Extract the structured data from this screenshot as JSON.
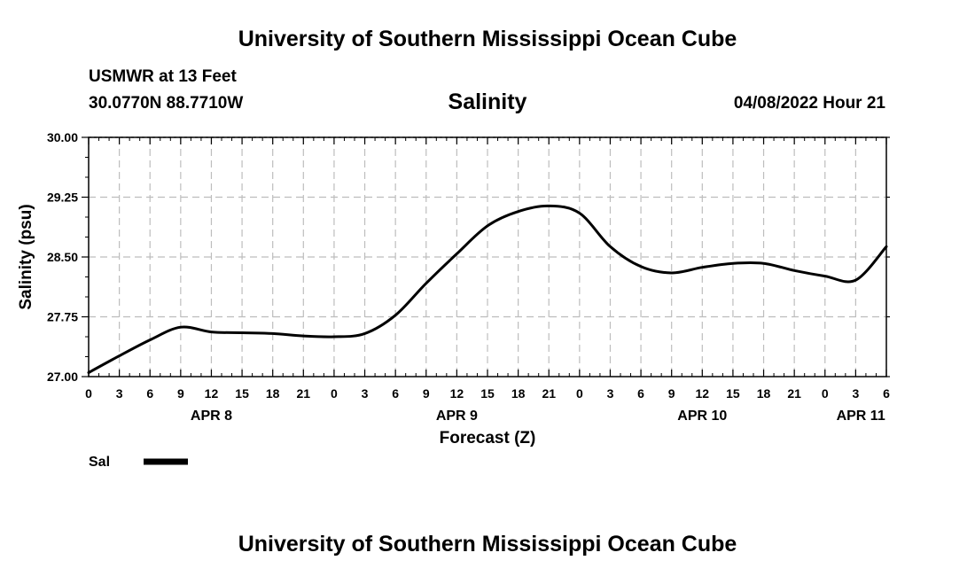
{
  "header": {
    "title": "University of Southern Mississippi Ocean Cube",
    "station": "USMWR at 13 Feet",
    "coords": "30.0770N  88.7710W",
    "datetime": "04/08/2022 Hour 21"
  },
  "footer": {
    "title": "University of Southern Mississippi Ocean Cube"
  },
  "chart_data": {
    "type": "line",
    "title": "Salinity",
    "xlabel": "Forecast (Z)",
    "ylabel": "Salinity (psu)",
    "ylim": [
      27.0,
      30.0
    ],
    "yticks": [
      "27.00",
      "27.75",
      "28.50",
      "29.25",
      "30.00"
    ],
    "xlim_hours": [
      0,
      78
    ],
    "xtick_hours": [
      0,
      3,
      6,
      9,
      12,
      15,
      18,
      21,
      24,
      27,
      30,
      33,
      36,
      39,
      42,
      45,
      48,
      51,
      54,
      57,
      60,
      63,
      66,
      69,
      72,
      75,
      78
    ],
    "xtick_labels": [
      "0",
      "3",
      "6",
      "9",
      "12",
      "15",
      "18",
      "21",
      "0",
      "3",
      "6",
      "9",
      "12",
      "15",
      "18",
      "21",
      "0",
      "3",
      "6",
      "9",
      "12",
      "15",
      "18",
      "21",
      "0",
      "3",
      "6"
    ],
    "date_labels": [
      {
        "label": "APR 8",
        "hour": 12
      },
      {
        "label": "APR 9",
        "hour": 36
      },
      {
        "label": "APR 10",
        "hour": 60
      },
      {
        "label": "APR 11",
        "hour": 75.5
      }
    ],
    "grid": true,
    "legend": {
      "label": "Sal",
      "position": "bottom-left"
    },
    "series": [
      {
        "name": "Sal",
        "x": [
          0,
          3,
          6,
          9,
          12,
          15,
          18,
          21,
          24,
          27,
          30,
          33,
          36,
          39,
          42,
          45,
          48,
          51,
          54,
          57,
          60,
          63,
          66,
          69,
          72,
          75,
          78
        ],
        "values": [
          27.05,
          27.26,
          27.46,
          27.62,
          27.56,
          27.55,
          27.54,
          27.51,
          27.5,
          27.54,
          27.77,
          28.17,
          28.54,
          28.89,
          29.07,
          29.14,
          29.05,
          28.63,
          28.38,
          28.3,
          28.37,
          28.42,
          28.42,
          28.33,
          28.26,
          28.21,
          28.63
        ]
      }
    ]
  }
}
